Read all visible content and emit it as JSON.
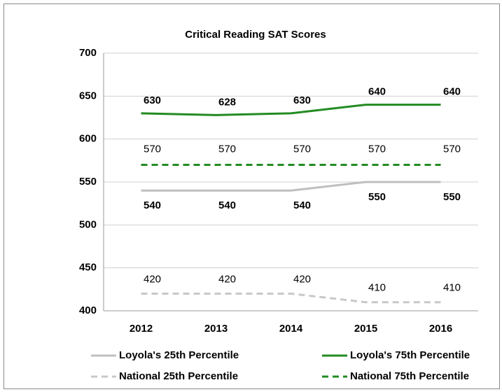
{
  "chart_data": {
    "type": "line",
    "title": "Critical Reading SAT Scores",
    "categories": [
      "2012",
      "2013",
      "2014",
      "2015",
      "2016"
    ],
    "series": [
      {
        "name": "Loyola's 25th Percentile",
        "color": "#bfbfbf",
        "line_style": "solid",
        "values": [
          540,
          540,
          540,
          550,
          550
        ]
      },
      {
        "name": "Loyola's 75th Percentile",
        "color": "#228b22",
        "line_style": "solid",
        "values": [
          630,
          628,
          630,
          640,
          640
        ]
      },
      {
        "name": "National 25th Percentile",
        "color": "#c8c8c8",
        "line_style": "dashed",
        "values": [
          420,
          420,
          420,
          410,
          410
        ]
      },
      {
        "name": "National 75th Percentile",
        "color": "#228b22",
        "line_style": "dashed",
        "values": [
          570,
          570,
          570,
          570,
          570
        ]
      }
    ],
    "ylim": [
      400,
      700
    ],
    "yticks": [
      400,
      450,
      500,
      550,
      600,
      650,
      700
    ],
    "grid": true,
    "legend": "bottom"
  }
}
